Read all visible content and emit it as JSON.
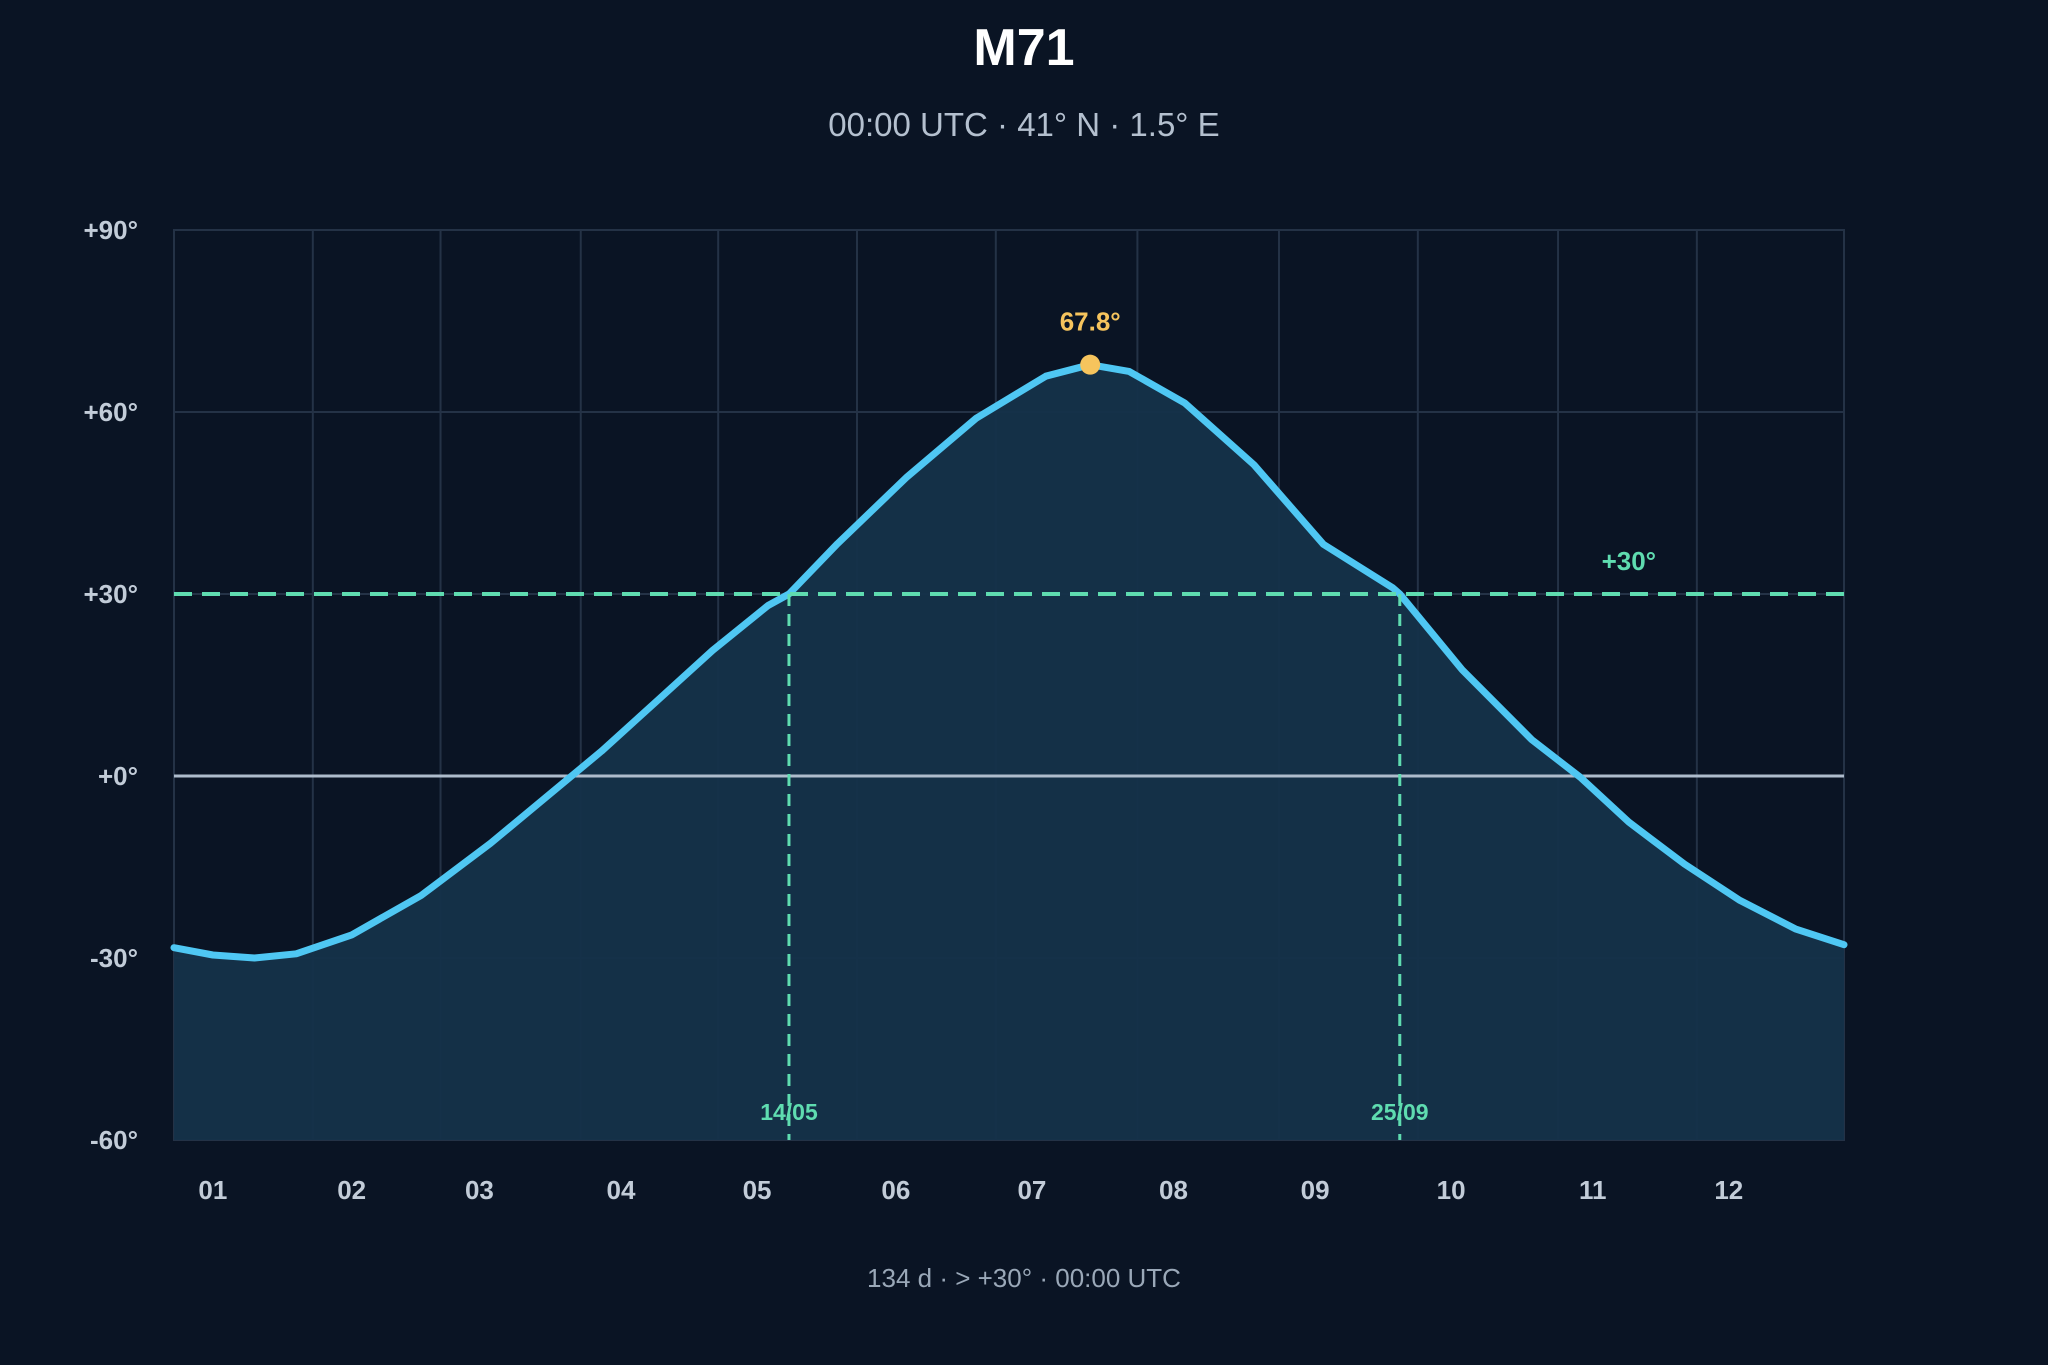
{
  "chart_data": {
    "type": "area",
    "title": "M71",
    "subtitle": "00:00 UTC · 41° N · 1.5° E",
    "footer": "134 d · > +30° · 00:00 UTC",
    "x_categories": [
      "01",
      "02",
      "03",
      "04",
      "05",
      "06",
      "07",
      "08",
      "09",
      "10",
      "11",
      "12"
    ],
    "y_ticks": [
      "+90°",
      "+60°",
      "+30°",
      "+0°",
      "-30°",
      "-60°"
    ],
    "ylim": [
      -60,
      90
    ],
    "xlim_month": [
      0.72,
      12.75
    ],
    "grid": true,
    "series": [
      {
        "x_month": [
          0.72,
          1.0,
          1.3,
          1.6,
          2.0,
          2.5,
          3.0,
          3.5,
          3.8,
          4.2,
          4.6,
          5.0,
          5.15,
          5.5,
          6.0,
          6.5,
          7.0,
          7.32,
          7.6,
          8.0,
          8.5,
          9.0,
          9.5,
          9.55,
          10.0,
          10.5,
          10.85,
          11.2,
          11.6,
          12.0,
          12.4,
          12.75
        ],
        "altitude": [
          -28.3,
          -29.5,
          -30.0,
          -29.3,
          -26.2,
          -19.7,
          -11.1,
          -1.6,
          4.1,
          12.4,
          20.7,
          28.1,
          30.0,
          38.3,
          49.3,
          59.0,
          65.9,
          67.8,
          66.7,
          61.5,
          51.3,
          38.2,
          31.0,
          30.0,
          17.5,
          6.0,
          -0.2,
          -7.6,
          -14.5,
          -20.5,
          -25.2,
          -27.8
        ],
        "color": "#4fc7f3"
      }
    ],
    "threshold": {
      "value": 30,
      "label": "+30°",
      "color": "#5fdcb0"
    },
    "crossings": [
      {
        "date": "14/05",
        "month": 5.15
      },
      {
        "date": "25/09",
        "month": 9.55
      }
    ],
    "peak": {
      "month": 7.32,
      "value": 67.8,
      "label": "67.8°",
      "color": "#f6c45d"
    }
  }
}
